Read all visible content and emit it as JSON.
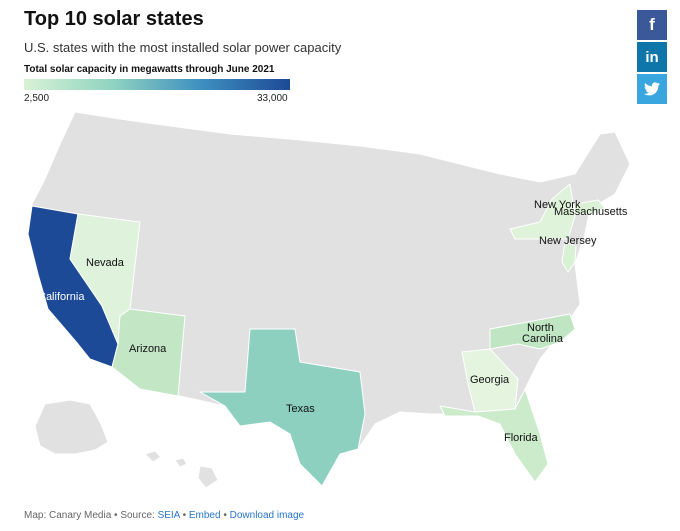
{
  "header": {
    "title": "Top 10 solar states",
    "subtitle": "U.S. states with the most installed solar power capacity"
  },
  "legend": {
    "title": "Total solar capacity in megawatts through June 2021",
    "min": "2,500",
    "max": "33,000",
    "colors": [
      "#d9f2d6",
      "#8fd3c0",
      "#3e8fc0",
      "#1d4a96"
    ]
  },
  "share": {
    "facebook": "f",
    "linkedin": "in",
    "twitter_icon": "twitter-bird"
  },
  "map": {
    "base_color": "#e1e1e1",
    "border_color": "#ffffff",
    "highlighted_states": [
      {
        "name": "California",
        "color": "#1d4a96"
      },
      {
        "name": "Texas",
        "color": "#8dd0c0"
      },
      {
        "name": "Nevada",
        "color": "#dff2dc"
      },
      {
        "name": "Arizona",
        "color": "#c3e6c4"
      },
      {
        "name": "North Carolina",
        "color": "#bfe5c3"
      },
      {
        "name": "Florida",
        "color": "#cbebcb"
      },
      {
        "name": "Georgia",
        "color": "#e4f4df"
      },
      {
        "name": "New Jersey",
        "color": "#d8f0d3"
      },
      {
        "name": "New York",
        "color": "#def3d9"
      },
      {
        "name": "Massachusetts",
        "color": "#daf1d5"
      }
    ],
    "labels": {
      "california": "California",
      "nevada": "Nevada",
      "arizona": "Arizona",
      "texas": "Texas",
      "north": "North",
      "carolina": "Carolina",
      "georgia": "Georgia",
      "florida": "Florida",
      "new_york": "New York",
      "massachusetts": "Massachusetts",
      "new_jersey": "New Jersey"
    }
  },
  "footer": {
    "prefix": "Map: Canary Media • Source: ",
    "source_link": "SEIA",
    "sep1": " • ",
    "embed_link": "Embed",
    "sep2": " • ",
    "download_link": "Download image"
  }
}
